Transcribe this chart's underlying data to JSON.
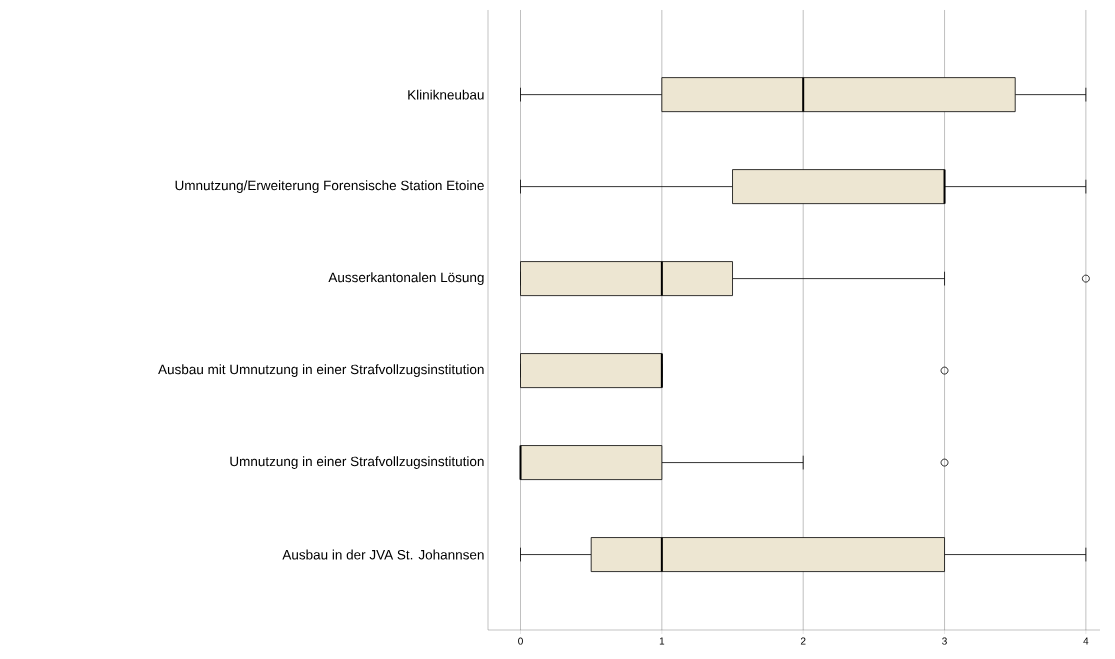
{
  "chart_data": {
    "type": "box",
    "orientation": "horizontal",
    "categories": [
      "Klinikneubau",
      "Umnutzung/Erweiterung Forensische Station Etoine",
      "Ausserkantonalen Lösung",
      "Ausbau mit Umnutzung in einer Strafvollzugsinstitution",
      "Umnutzung in einer Strafvollzugsinstitution",
      "Ausbau in der JVA St. Johannsen"
    ],
    "boxes": [
      {
        "low": 0,
        "q1": 1,
        "median": 2,
        "q3": 3.5,
        "high": 4
      },
      {
        "low": 0,
        "q1": 1.5,
        "median": 3,
        "q3": 3,
        "high": 4
      },
      {
        "low": 0,
        "q1": 0,
        "median": 1,
        "q3": 1.5,
        "high": 3,
        "outliers": [
          4
        ]
      },
      {
        "low": 0,
        "q1": 0,
        "median": 1,
        "q3": 1,
        "high": 1,
        "outliers": [
          3
        ]
      },
      {
        "low": 0,
        "q1": 0,
        "median": 0,
        "q3": 1,
        "high": 2,
        "outliers": [
          3
        ]
      },
      {
        "low": 0,
        "q1": 0.5,
        "median": 1,
        "q3": 3,
        "high": 4
      }
    ],
    "color": "#ede6d2",
    "xlim": [
      -0.23,
      4.1
    ],
    "xticks": [
      0,
      1,
      2,
      3,
      4
    ],
    "grid": "x",
    "marker": "circle"
  }
}
